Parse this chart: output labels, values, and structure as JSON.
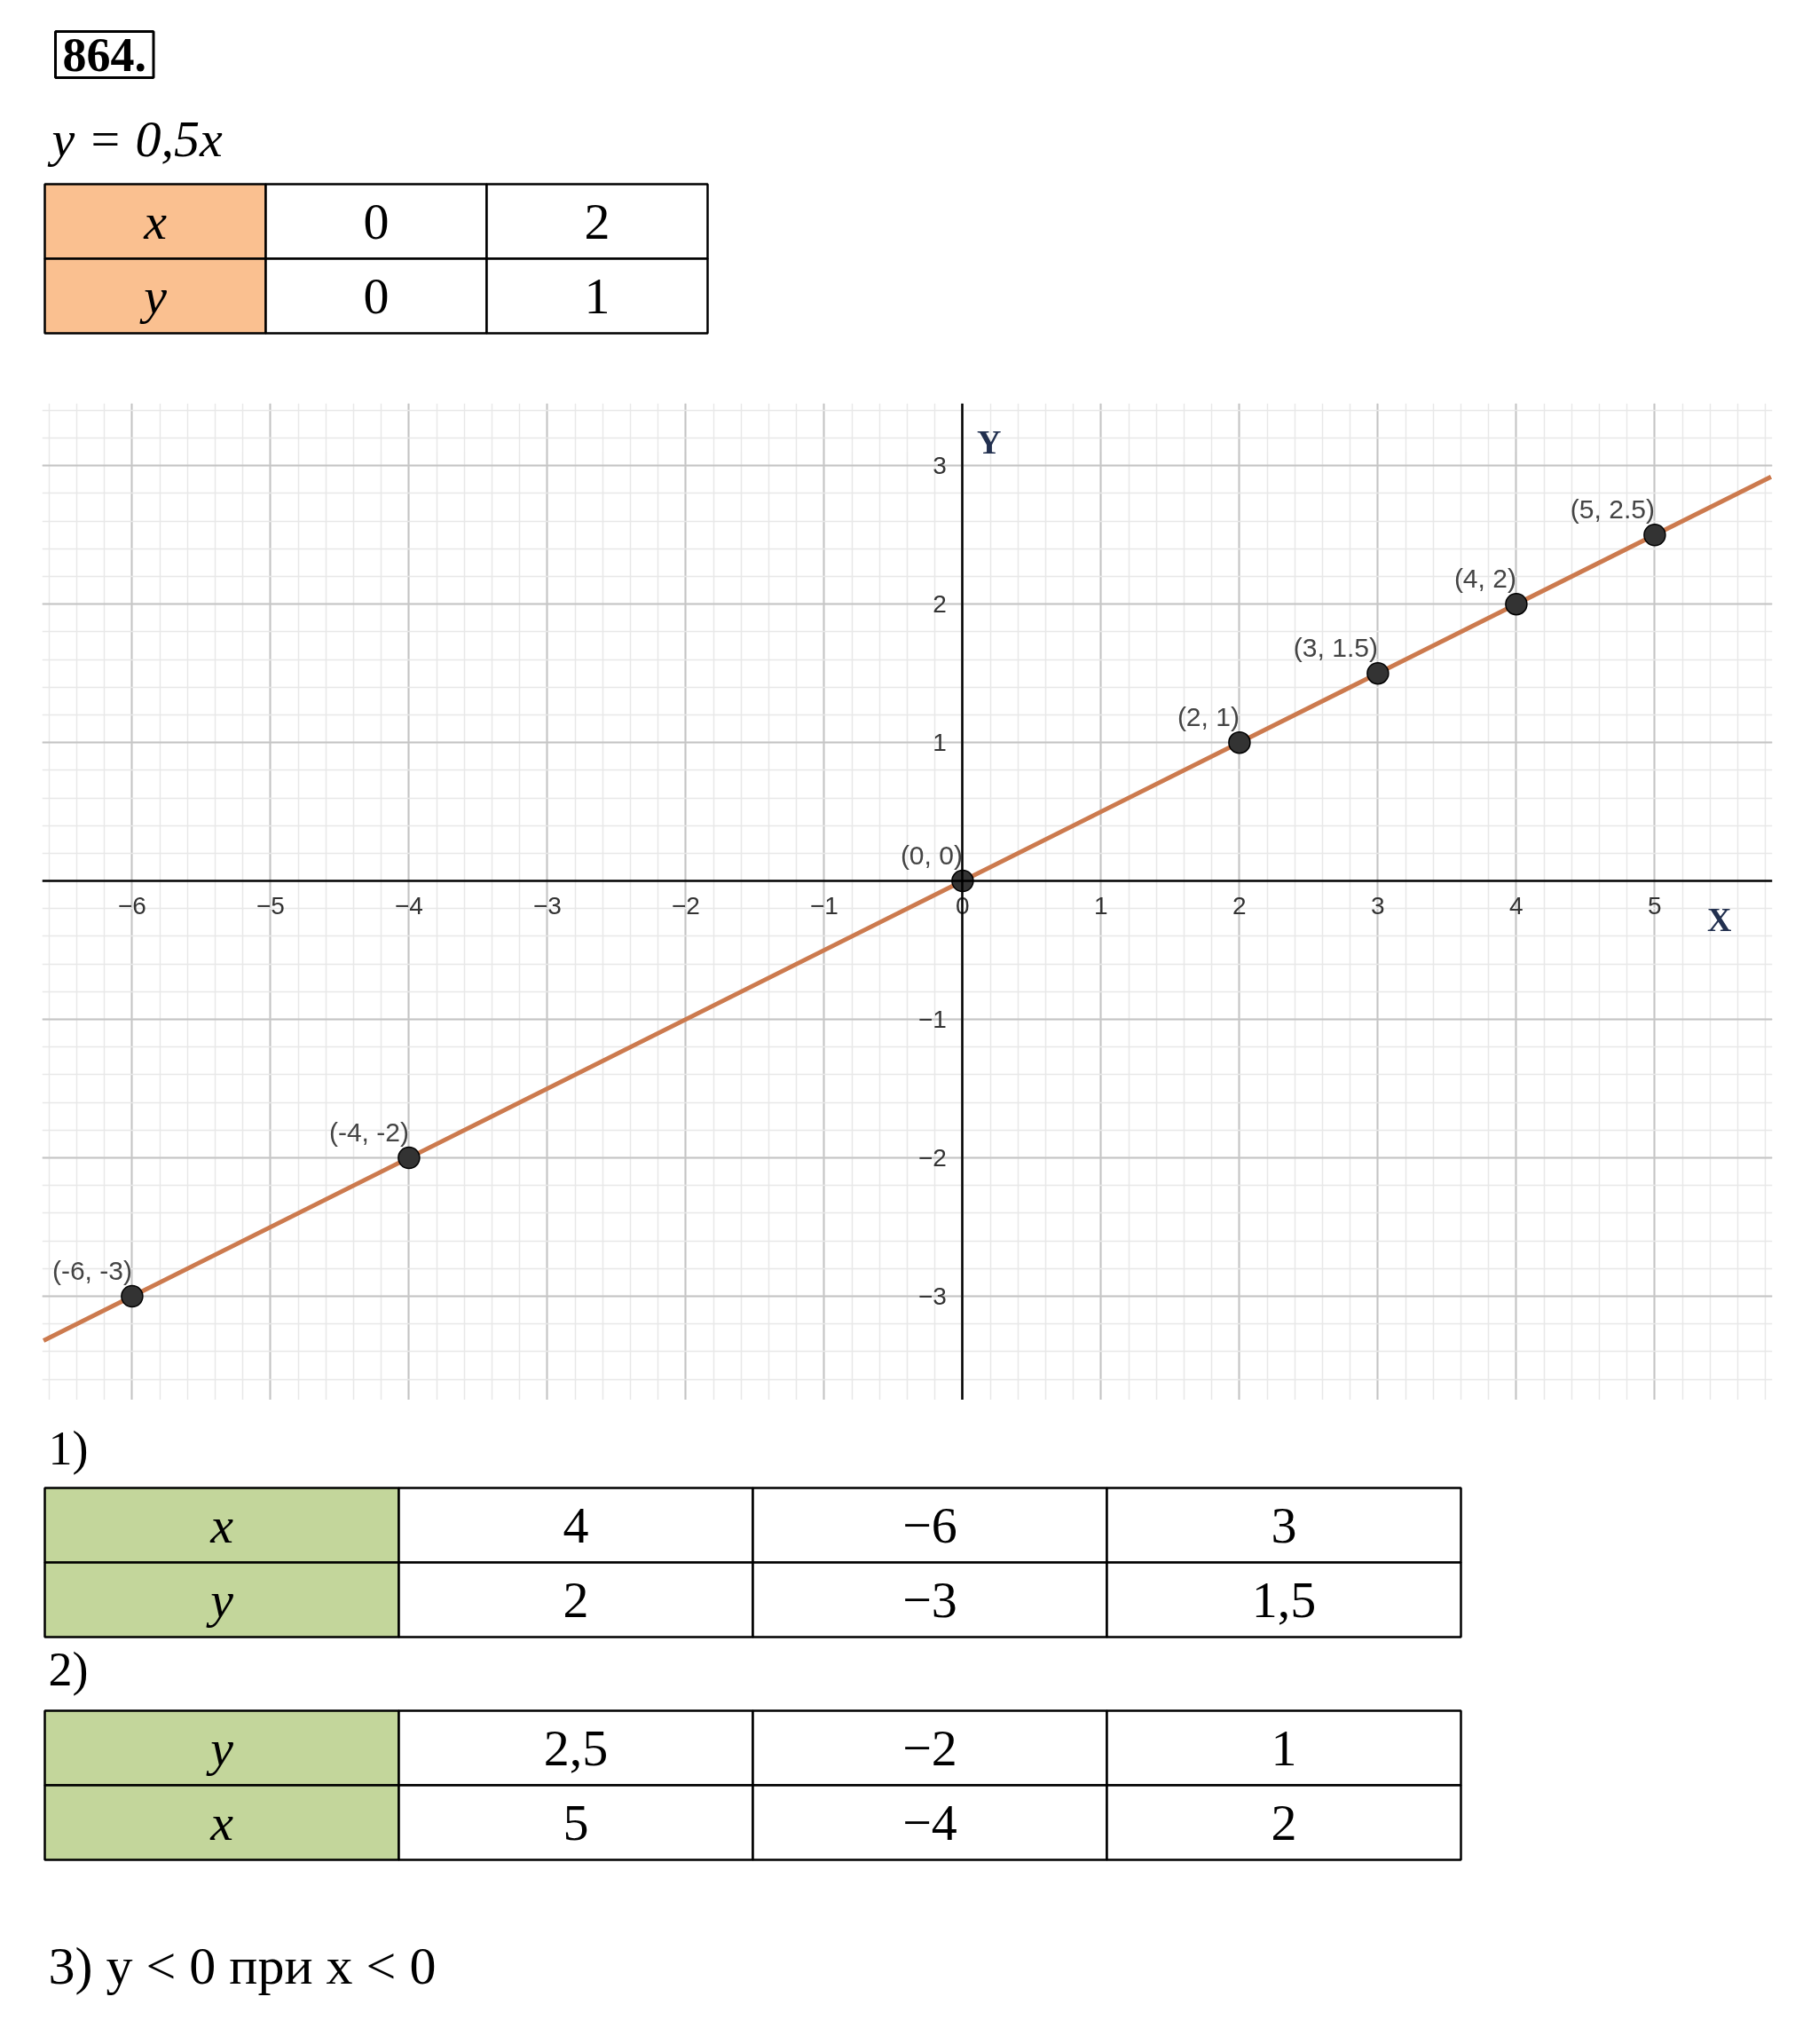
{
  "chart_data": [
    {
      "type": "other",
      "title": "864.",
      "subtitle": "y = 0,5x",
      "color": "#fac090",
      "annotations": [
        "x",
        "0",
        "2",
        "y",
        "0",
        "1"
      ]
    },
    {
      "type": "line",
      "xlabel": "X",
      "ylabel": "Y",
      "xlim": [
        -6.65,
        5.85
      ],
      "ylim": [
        -3.75,
        3.45
      ],
      "xticks": [
        -6,
        -5,
        -4,
        -3,
        -2,
        -1,
        0,
        1,
        2,
        3,
        4,
        5
      ],
      "yticks": [
        -3,
        -2,
        -1,
        1,
        2,
        3
      ],
      "grid": true,
      "series": [
        {
          "type": "line",
          "color": "#cc7a4e",
          "x": [
            -6.64,
            5.84
          ],
          "values": [
            -3.32,
            2.92
          ]
        },
        {
          "type": "scatter",
          "color": "#333333",
          "marker": "circle",
          "x": [
            -6,
            -4,
            0,
            2,
            3,
            4,
            5
          ],
          "values": [
            -3,
            -2,
            0,
            1,
            1.5,
            2,
            2.5
          ],
          "value_labels": [
            "(-6, -3)",
            "(-4, -2)",
            "(0, 0)",
            "(2, 1)",
            "(3, 1.5)",
            "(4, 2)",
            "(5, 2.5)"
          ]
        }
      ]
    },
    {
      "type": "other",
      "title": "1)",
      "color": "#c3d69b",
      "annotations": [
        "x",
        "4",
        "−6",
        "3",
        "y",
        "2",
        "−3",
        "1,5"
      ]
    },
    {
      "type": "other",
      "title": "2)",
      "color": "#c3d69b",
      "annotations": [
        "y",
        "2,5",
        "−2",
        "1",
        "x",
        "5",
        "−4",
        "2"
      ]
    },
    {
      "type": "other",
      "annotations": [
        "3) y < 0 при x < 0"
      ]
    }
  ]
}
